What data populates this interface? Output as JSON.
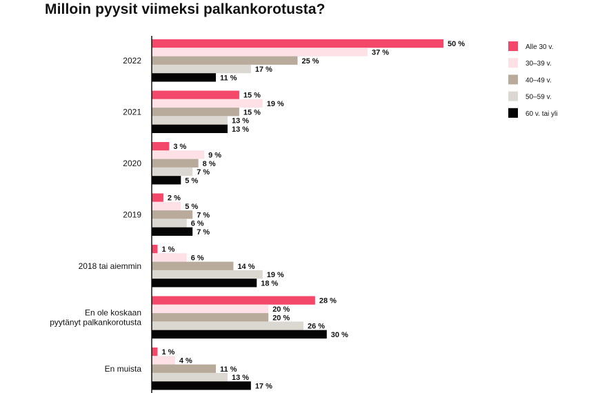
{
  "chart_data": {
    "type": "bar",
    "orientation": "horizontal",
    "title": "Milloin pyysit viimeksi palkankorotusta?",
    "categories": [
      [
        "2022"
      ],
      [
        "2021"
      ],
      [
        "2020"
      ],
      [
        "2019"
      ],
      [
        "2018 tai aiemmin"
      ],
      [
        "En ole koskaan",
        "pyytänyt palkankorotusta"
      ],
      [
        "En muista"
      ]
    ],
    "series": [
      {
        "name": "Alle 30 v.",
        "color": "#f4486a",
        "values": [
          50,
          15,
          3,
          2,
          1,
          28,
          1
        ]
      },
      {
        "name": "30–39 v.",
        "color": "#fde1e6",
        "values": [
          37,
          19,
          9,
          5,
          6,
          20,
          4
        ]
      },
      {
        "name": "40–49 v.",
        "color": "#b9ab9b",
        "values": [
          25,
          15,
          8,
          7,
          14,
          20,
          11
        ]
      },
      {
        "name": "50–59 v.",
        "color": "#dbd7d1",
        "values": [
          17,
          13,
          7,
          6,
          19,
          26,
          13
        ]
      },
      {
        "name": "60 v. tai yli",
        "color": "#050505",
        "values": [
          11,
          13,
          5,
          7,
          18,
          30,
          17
        ]
      }
    ],
    "value_suffix": " %",
    "xlim": [
      0,
      50
    ],
    "grid": false,
    "legend_position": "top-right"
  }
}
